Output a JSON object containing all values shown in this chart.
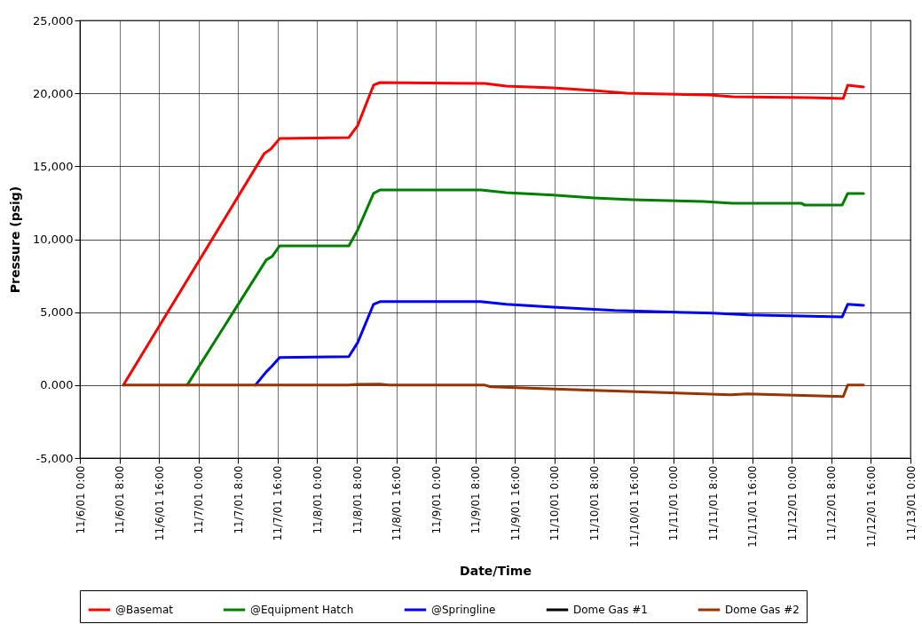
{
  "chart_data": {
    "type": "line",
    "xlabel": "Date/Time",
    "ylabel": "Pressure (psig)",
    "xlim": [
      "--11-06T00:00",
      "--11-13T00:00"
    ],
    "xticks": [
      {
        "value": "--11-06T00:00",
        "label": "11/6/01 0:00"
      },
      {
        "value": "--11-06T08:00",
        "label": "11/6/01 8:00"
      },
      {
        "value": "--11-06T16:00",
        "label": "11/6/01 16:00"
      },
      {
        "value": "--11-07T00:00",
        "label": "11/7/01 0:00"
      },
      {
        "value": "--11-07T08:00",
        "label": "11/7/01 8:00"
      },
      {
        "value": "--11-07T16:00",
        "label": "11/7/01 16:00"
      },
      {
        "value": "--11-08T00:00",
        "label": "11/8/01 0:00"
      },
      {
        "value": "--11-08T08:00",
        "label": "11/8/01 8:00"
      },
      {
        "value": "--11-08T16:00",
        "label": "11/8/01 16:00"
      },
      {
        "value": "--11-09T00:00",
        "label": "11/9/01 0:00"
      },
      {
        "value": "--11-09T08:00",
        "label": "11/9/01 8:00"
      },
      {
        "value": "--11-09T16:00",
        "label": "11/9/01 16:00"
      },
      {
        "value": "--11-10T00:00",
        "label": "11/10/01 0:00"
      },
      {
        "value": "--11-10T08:00",
        "label": "11/10/01 8:00"
      },
      {
        "value": "--11-10T16:00",
        "label": "11/10/01 16:00"
      },
      {
        "value": "--11-11T00:00",
        "label": "11/11/01 0:00"
      },
      {
        "value": "--11-11T08:00",
        "label": "11/11/01 8:00"
      },
      {
        "value": "--11-11T16:00",
        "label": "11/11/01 16:00"
      },
      {
        "value": "--11-12T00:00",
        "label": "11/12/01 0:00"
      },
      {
        "value": "--11-12T08:00",
        "label": "11/12/01 8:00"
      },
      {
        "value": "--11-12T16:00",
        "label": "11/12/01 16:00"
      },
      {
        "value": "--11-13T00:00",
        "label": "11/13/01 0:00"
      }
    ],
    "ylim": [
      -5000,
      25000
    ],
    "yticks": [
      {
        "value": -5000,
        "label": "-5,000"
      },
      {
        "value": 0,
        "label": "0.000"
      },
      {
        "value": 5000,
        "label": "5,000"
      },
      {
        "value": 10000,
        "label": "10,000"
      },
      {
        "value": 15000,
        "label": "15,000"
      },
      {
        "value": 20000,
        "label": "20,000"
      },
      {
        "value": 25000,
        "label": "25,000"
      }
    ],
    "grid": true,
    "legend": "bottom",
    "line_style": "solid",
    "series": [
      {
        "name": "@Basemat",
        "color": "#ff0000",
        "x": [
          "--11-06T08:48",
          "--11-07T13:18",
          "--11-07T14:36",
          "--11-07T16:24",
          "--11-08T06:24",
          "--11-08T08:12",
          "--11-08T11:24",
          "--11-08T12:42",
          "--11-09T09:54",
          "--11-09T14:12",
          "--11-09T23:42",
          "--11-10T08:00",
          "--11-10T14:36",
          "--11-11T07:24",
          "--11-11T12:00",
          "--11-12T03:42",
          "--11-12T10:24",
          "--11-12T11:18",
          "--11-12T14:30"
        ],
        "values": [
          0,
          15880,
          16180,
          16900,
          16970,
          17800,
          20560,
          20740,
          20680,
          20500,
          20380,
          20200,
          20010,
          19890,
          19770,
          19700,
          19650,
          20560,
          20440
        ]
      },
      {
        "name": "@Equipment Hatch",
        "color": "#008000",
        "x": [
          "--11-06T21:42",
          "--11-07T13:42",
          "--11-07T14:54",
          "--11-07T16:24",
          "--11-08T06:24",
          "--11-08T08:12",
          "--11-08T11:24",
          "--11-08T12:42",
          "--11-09T09:06",
          "--11-09T14:12",
          "--11-09T23:42",
          "--11-10T08:00",
          "--11-10T15:48",
          "--11-11T06:12",
          "--11-11T12:00",
          "--11-12T01:54",
          "--11-12T02:30",
          "--11-12T10:12",
          "--11-12T11:18",
          "--11-12T14:30"
        ],
        "values": [
          0,
          8580,
          8820,
          9550,
          9550,
          10640,
          13140,
          13380,
          13380,
          13200,
          13020,
          12830,
          12710,
          12590,
          12470,
          12470,
          12350,
          12350,
          13140,
          13140
        ]
      },
      {
        "name": "@Springline",
        "color": "#0000ff",
        "x": [
          "--11-07T11:30",
          "--11-07T13:42",
          "--11-07T14:48",
          "--11-07T16:24",
          "--11-08T06:24",
          "--11-08T08:12",
          "--11-08T11:24",
          "--11-08T12:42",
          "--11-09T09:00",
          "--11-09T14:12",
          "--11-09T23:42",
          "--11-10T12:12",
          "--11-11T08:00",
          "--11-11T15:12",
          "--11-12T10:12",
          "--11-12T11:18",
          "--11-12T14:30"
        ],
        "values": [
          0,
          910,
          1280,
          1890,
          1950,
          2920,
          5540,
          5720,
          5720,
          5540,
          5350,
          5110,
          4930,
          4810,
          4680,
          5540,
          5470
        ]
      },
      {
        "name": "Dome Gas #1",
        "color": "#000000"
      },
      {
        "name": "Dome Gas #2",
        "color": "#993300",
        "x": [
          "--11-06T08:48",
          "--11-08T06:24",
          "--11-08T08:12",
          "--11-08T12:42",
          "--11-08T14:30",
          "--11-09T09:54",
          "--11-09T11:06",
          "--11-10T08:00",
          "--11-10T20:42",
          "--11-11T11:36",
          "--11-11T15:00",
          "--11-12T10:24",
          "--11-12T11:18",
          "--11-12T14:30"
        ],
        "values": [
          0,
          0,
          50,
          60,
          0,
          0,
          -120,
          -360,
          -490,
          -670,
          -610,
          -790,
          0,
          0
        ]
      }
    ]
  }
}
